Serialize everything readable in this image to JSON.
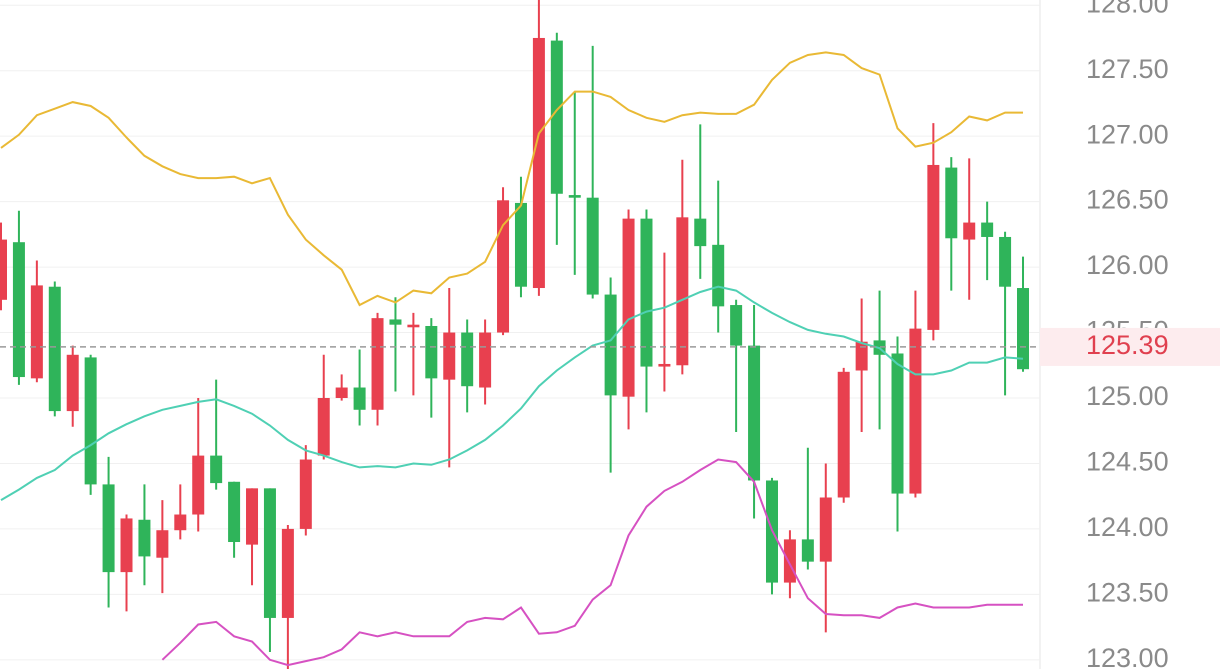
{
  "chart_data": {
    "type": "candlestick",
    "open": [
      125.75,
      126.19,
      125.15,
      125.85,
      124.9,
      125.31,
      124.34,
      123.67,
      124.07,
      123.78,
      123.99,
      124.11,
      124.56,
      124.36,
      123.88,
      124.31,
      123.32,
      124.0,
      124.56,
      125.0,
      125.08,
      124.91,
      125.6,
      125.54,
      125.55,
      125.14,
      125.5,
      125.08,
      125.5,
      126.49,
      125.84,
      127.73,
      126.55,
      126.53,
      125.79,
      125.01,
      126.37,
      125.24,
      125.25,
      126.37,
      126.17,
      125.71,
      125.4,
      124.37,
      123.59,
      123.92,
      123.75,
      124.24,
      125.21,
      125.44,
      125.34,
      124.27,
      125.52,
      126.76,
      126.21,
      126.34,
      126.23,
      125.84
    ],
    "high": [
      126.34,
      126.43,
      126.05,
      125.89,
      125.4,
      125.33,
      124.55,
      124.11,
      124.34,
      124.22,
      124.34,
      125.0,
      125.14,
      124.36,
      124.31,
      124.31,
      124.03,
      124.64,
      125.33,
      125.18,
      125.37,
      125.65,
      125.77,
      125.65,
      125.61,
      125.84,
      125.6,
      125.6,
      126.61,
      126.69,
      128.04,
      127.79,
      127.34,
      127.69,
      125.92,
      126.44,
      126.44,
      126.11,
      126.82,
      127.09,
      126.66,
      125.75,
      125.71,
      124.39,
      123.99,
      124.62,
      124.5,
      125.23,
      125.76,
      125.82,
      125.47,
      125.82,
      127.1,
      126.84,
      126.83,
      126.5,
      126.27,
      126.08
    ],
    "low": [
      125.67,
      125.1,
      125.12,
      124.86,
      124.78,
      124.26,
      123.4,
      123.37,
      123.57,
      123.51,
      123.92,
      123.98,
      124.3,
      123.78,
      123.57,
      123.06,
      122.93,
      123.95,
      124.53,
      124.98,
      124.79,
      124.79,
      125.05,
      125.02,
      124.85,
      124.47,
      124.89,
      124.95,
      125.48,
      125.77,
      125.78,
      126.17,
      125.94,
      125.76,
      124.43,
      124.76,
      124.89,
      125.05,
      125.18,
      125.91,
      125.5,
      124.74,
      124.08,
      123.5,
      123.47,
      123.69,
      123.21,
      124.2,
      124.74,
      124.76,
      123.98,
      124.24,
      125.44,
      125.82,
      125.75,
      125.9,
      125.02,
      125.2
    ],
    "close": [
      126.21,
      125.16,
      125.86,
      124.9,
      125.33,
      124.34,
      123.67,
      124.08,
      123.79,
      123.99,
      124.11,
      124.56,
      124.35,
      123.9,
      124.31,
      123.32,
      124.0,
      124.53,
      125.0,
      125.08,
      124.91,
      125.61,
      125.56,
      125.56,
      125.15,
      125.5,
      125.09,
      125.5,
      126.51,
      125.85,
      127.75,
      126.56,
      126.53,
      125.79,
      125.02,
      126.37,
      125.24,
      125.26,
      126.38,
      126.16,
      125.7,
      125.4,
      124.37,
      123.59,
      123.92,
      123.75,
      124.24,
      125.2,
      125.43,
      125.33,
      124.27,
      125.53,
      126.78,
      126.22,
      126.34,
      126.23,
      125.85,
      125.22
    ],
    "up_color": "#e8404f",
    "down_color": "#2fb45a",
    "series": [
      {
        "color": "#e9b935",
        "values": [
          126.91,
          127.01,
          127.16,
          127.21,
          127.26,
          127.23,
          127.14,
          126.99,
          126.85,
          126.77,
          126.71,
          126.68,
          126.68,
          126.69,
          126.64,
          126.68,
          126.4,
          126.21,
          126.09,
          125.98,
          125.71,
          125.78,
          125.73,
          125.82,
          125.8,
          125.92,
          125.95,
          126.04,
          126.32,
          126.47,
          127.02,
          127.2,
          127.34,
          127.34,
          127.3,
          127.2,
          127.14,
          127.11,
          127.16,
          127.18,
          127.17,
          127.17,
          127.24,
          127.43,
          127.56,
          127.62,
          127.64,
          127.62,
          127.52,
          127.47,
          127.06,
          126.92,
          126.95,
          127.03,
          127.15,
          127.12,
          127.18,
          127.18
        ]
      },
      {
        "color": "#4fd0b4",
        "values": [
          124.22,
          124.3,
          124.39,
          124.45,
          124.56,
          124.64,
          124.73,
          124.8,
          124.86,
          124.91,
          124.94,
          124.97,
          124.99,
          124.94,
          124.88,
          124.79,
          124.68,
          124.6,
          124.56,
          124.51,
          124.47,
          124.48,
          124.47,
          124.5,
          124.49,
          124.53,
          124.6,
          124.68,
          124.79,
          124.92,
          125.09,
          125.21,
          125.31,
          125.4,
          125.44,
          125.6,
          125.66,
          125.69,
          125.75,
          125.81,
          125.85,
          125.82,
          125.73,
          125.65,
          125.58,
          125.52,
          125.49,
          125.47,
          125.42,
          125.38,
          125.26,
          125.18,
          125.18,
          125.21,
          125.27,
          125.27,
          125.31,
          125.3
        ]
      },
      {
        "color": "#d651c2",
        "values": [
          null,
          null,
          null,
          null,
          null,
          null,
          null,
          null,
          null,
          123.0,
          123.13,
          123.27,
          123.29,
          123.18,
          123.14,
          123.0,
          122.96,
          122.99,
          123.02,
          123.08,
          123.21,
          123.18,
          123.21,
          123.18,
          123.18,
          123.18,
          123.29,
          123.32,
          123.31,
          123.4,
          123.2,
          123.21,
          123.26,
          123.46,
          123.57,
          123.95,
          124.17,
          124.29,
          124.36,
          124.45,
          124.53,
          124.51,
          124.36,
          123.99,
          123.73,
          123.47,
          123.35,
          123.34,
          123.34,
          123.32,
          123.4,
          123.43,
          123.4,
          123.4,
          123.4,
          123.42,
          123.42,
          123.42
        ]
      }
    ],
    "current_price": 125.39,
    "current_price_color": "#e0404f",
    "ylim": [
      122.93,
      128.04
    ],
    "yticks": [
      {
        "value": 123,
        "label": "123.00"
      },
      {
        "value": 123.5,
        "label": "123.50"
      },
      {
        "value": 124,
        "label": "124.00"
      },
      {
        "value": 124.5,
        "label": "124.50"
      },
      {
        "value": 125,
        "label": "125.00"
      },
      {
        "value": 125.5,
        "label": "125.50"
      },
      {
        "value": 126,
        "label": "126.00"
      },
      {
        "value": 126.5,
        "label": "126.50"
      },
      {
        "value": 127,
        "label": "127.00"
      },
      {
        "value": 127.5,
        "label": "127.50"
      },
      {
        "value": 128,
        "label": "128.00"
      }
    ],
    "grid": true
  }
}
